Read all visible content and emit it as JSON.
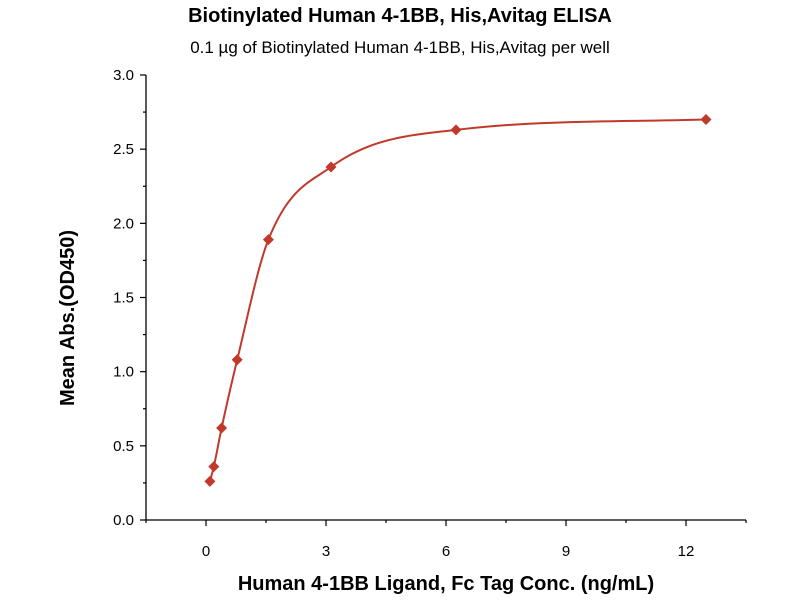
{
  "chart_data": {
    "type": "scatter",
    "title": "Biotinylated Human 4-1BB, His,Avitag ELISA",
    "subtitle": "0.1 µg of Biotinylated Human 4-1BB, His,Avitag per well",
    "xlabel": "Human 4-1BB Ligand, Fc Tag Conc. (ng/mL)",
    "ylabel": "Mean Abs.(OD450)",
    "xlim": [
      -1.5,
      13.5
    ],
    "ylim": [
      0,
      3.0
    ],
    "xticks": [
      0,
      3,
      6,
      9,
      12
    ],
    "yticks": [
      0.0,
      0.5,
      1.0,
      1.5,
      2.0,
      2.5,
      3.0
    ],
    "x_tick_labels": [
      "0",
      "3",
      "6",
      "9",
      "12"
    ],
    "y_tick_labels": [
      "0.0",
      "0.5",
      "1.0",
      "1.5",
      "2.0",
      "2.5",
      "3.0"
    ],
    "grid": false,
    "series": [
      {
        "marker": "diamond",
        "color": "#c0392b",
        "fit_curve": true,
        "points": [
          {
            "x": 0.098,
            "y": 0.26
          },
          {
            "x": 0.195,
            "y": 0.36
          },
          {
            "x": 0.39,
            "y": 0.62
          },
          {
            "x": 0.78,
            "y": 1.08
          },
          {
            "x": 1.56,
            "y": 1.89
          },
          {
            "x": 3.125,
            "y": 2.38
          },
          {
            "x": 6.25,
            "y": 2.63
          },
          {
            "x": 12.5,
            "y": 2.7
          }
        ]
      }
    ]
  }
}
